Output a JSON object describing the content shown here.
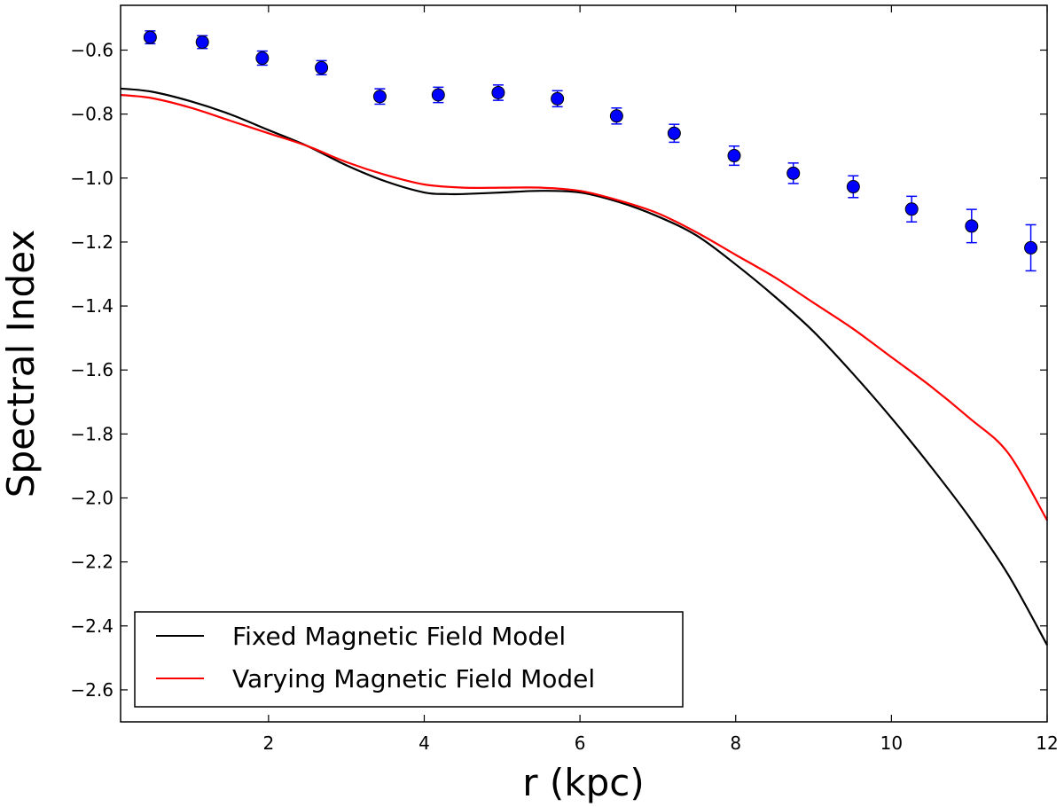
{
  "chart_data": {
    "type": "line",
    "title": "",
    "xlabel": "r (kpc)",
    "ylabel": "Spectral Index",
    "xlim": [
      0.1,
      12
    ],
    "ylim": [
      -2.7,
      -0.46
    ],
    "x_ticks": [
      2,
      4,
      6,
      8,
      10,
      12
    ],
    "y_ticks": [
      -0.6,
      -0.8,
      -1.0,
      -1.2,
      -1.4,
      -1.6,
      -1.8,
      -2.0,
      -2.2,
      -2.4,
      -2.6
    ],
    "x_tick_labels": [
      "2",
      "4",
      "6",
      "8",
      "10",
      "12"
    ],
    "y_tick_labels": [
      "−0.6",
      "−0.8",
      "−1.0",
      "−1.2",
      "−1.4",
      "−1.6",
      "−1.8",
      "−2.0",
      "−2.2",
      "−2.4",
      "−2.6"
    ],
    "grid": false,
    "legend_position": "lower-left",
    "series": [
      {
        "name": "Fixed Magnetic Field Model",
        "kind": "line",
        "color": "#000000",
        "x": [
          0.1,
          0.5,
          1.0,
          1.5,
          2.0,
          2.5,
          3.0,
          3.5,
          4.0,
          4.3,
          4.5,
          5.0,
          5.5,
          6.0,
          6.5,
          7.0,
          7.5,
          8.0,
          8.5,
          9.0,
          9.5,
          10.0,
          10.5,
          11.0,
          11.5,
          12.0
        ],
        "y": [
          -0.72,
          -0.73,
          -0.76,
          -0.8,
          -0.85,
          -0.9,
          -0.96,
          -1.01,
          -1.045,
          -1.05,
          -1.05,
          -1.045,
          -1.04,
          -1.045,
          -1.075,
          -1.12,
          -1.18,
          -1.27,
          -1.37,
          -1.48,
          -1.61,
          -1.75,
          -1.9,
          -2.06,
          -2.24,
          -2.46
        ]
      },
      {
        "name": "Varying Magnetic Field Model",
        "kind": "line",
        "color": "#ff0000",
        "x": [
          0.1,
          0.5,
          1.0,
          1.5,
          2.0,
          2.5,
          3.0,
          3.5,
          4.0,
          4.5,
          5.0,
          5.5,
          6.0,
          6.5,
          7.0,
          7.5,
          8.0,
          8.5,
          9.0,
          9.5,
          10.0,
          10.5,
          11.0,
          11.5,
          12.0
        ],
        "y": [
          -0.74,
          -0.75,
          -0.78,
          -0.82,
          -0.86,
          -0.9,
          -0.95,
          -0.99,
          -1.02,
          -1.03,
          -1.03,
          -1.03,
          -1.04,
          -1.07,
          -1.11,
          -1.17,
          -1.24,
          -1.31,
          -1.39,
          -1.47,
          -1.56,
          -1.65,
          -1.75,
          -1.86,
          -2.07
        ]
      },
      {
        "name": "",
        "kind": "scatter",
        "color": "#0000ff",
        "x": [
          0.48,
          1.15,
          1.92,
          2.68,
          3.43,
          4.18,
          4.95,
          5.71,
          6.47,
          7.21,
          7.98,
          8.74,
          9.51,
          10.26,
          11.03,
          11.79
        ],
        "y": [
          -0.56,
          -0.575,
          -0.625,
          -0.655,
          -0.745,
          -0.74,
          -0.733,
          -0.752,
          -0.806,
          -0.86,
          -0.93,
          -0.985,
          -1.027,
          -1.097,
          -1.15,
          -1.218
        ],
        "err": [
          0.02,
          0.02,
          0.022,
          0.022,
          0.024,
          0.024,
          0.024,
          0.025,
          0.025,
          0.028,
          0.03,
          0.032,
          0.034,
          0.04,
          0.052,
          0.072
        ]
      }
    ]
  }
}
